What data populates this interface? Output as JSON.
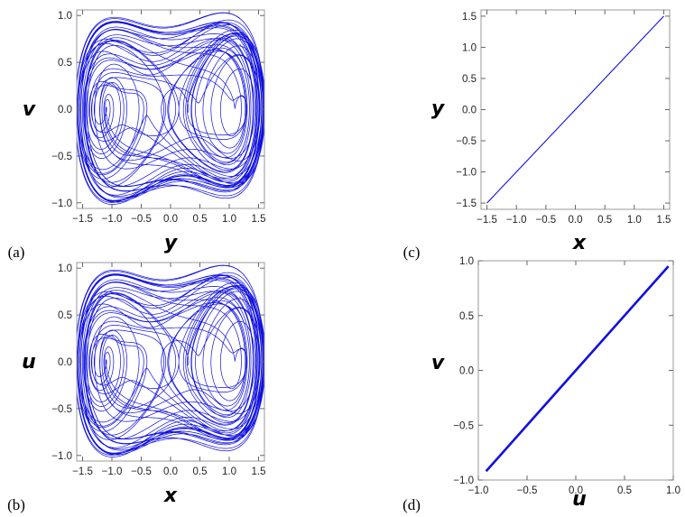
{
  "chart_data": [
    {
      "panel": "(a)",
      "type": "line",
      "curve": "chaotic-attractor",
      "xlabel": "y",
      "ylabel": "v",
      "xlim": [
        -1.6,
        1.6
      ],
      "ylim": [
        -1.06,
        1.06
      ],
      "xticks": [
        -1.5,
        -1.0,
        -0.5,
        0.0,
        0.5,
        1.0,
        1.5
      ],
      "xtick_labels": [
        "−1.5",
        "−1.0",
        "−0.5",
        "0.0",
        "0.5",
        "1.0",
        "1.5"
      ],
      "yticks": [
        -1.0,
        -0.5,
        0.0,
        0.5,
        1.0
      ],
      "ytick_labels": [
        "−1.0",
        "−0.5",
        "0.0",
        "0.5",
        "1.0"
      ],
      "line_color": "#1010e0"
    },
    {
      "panel": "(b)",
      "type": "line",
      "curve": "chaotic-attractor",
      "xlabel": "x",
      "ylabel": "u",
      "xlim": [
        -1.6,
        1.6
      ],
      "ylim": [
        -1.06,
        1.06
      ],
      "xticks": [
        -1.5,
        -1.0,
        -0.5,
        0.0,
        0.5,
        1.0,
        1.5
      ],
      "xtick_labels": [
        "−1.5",
        "−1.0",
        "−0.5",
        "0.0",
        "0.5",
        "1.0",
        "1.5"
      ],
      "yticks": [
        -1.0,
        -0.5,
        0.0,
        0.5,
        1.0
      ],
      "ytick_labels": [
        "−1.0",
        "−0.5",
        "0.0",
        "0.5",
        "1.0"
      ],
      "line_color": "#1010e0"
    },
    {
      "panel": "(c)",
      "type": "line",
      "curve": "straight-line",
      "xlabel": "x",
      "ylabel": "y",
      "xlim": [
        -1.6,
        1.6
      ],
      "ylim": [
        -1.6,
        1.6
      ],
      "xticks": [
        -1.5,
        -1.0,
        -0.5,
        0.0,
        0.5,
        1.0,
        1.5
      ],
      "xtick_labels": [
        "−1.5",
        "−1.0",
        "−0.5",
        "0.0",
        "0.5",
        "1.0",
        "1.5"
      ],
      "yticks": [
        -1.5,
        -1.0,
        -0.5,
        0.0,
        0.5,
        1.0,
        1.5
      ],
      "ytick_labels": [
        "−1.5",
        "−1.0",
        "−0.5",
        "0.0",
        "0.5",
        "1.0",
        "1.5"
      ],
      "x": [
        -1.5,
        1.5
      ],
      "y": [
        -1.5,
        1.5
      ],
      "line_color": "#1010e0"
    },
    {
      "panel": "(d)",
      "type": "line",
      "curve": "straight-line",
      "xlabel": "u",
      "ylabel": "v",
      "xlim": [
        -1.0,
        1.0
      ],
      "ylim": [
        -1.0,
        1.0
      ],
      "xticks": [
        -1.0,
        -0.5,
        0.0,
        0.5,
        1.0
      ],
      "xtick_labels": [
        "−1.0",
        "−0.5",
        "0.0",
        "0.5",
        "1.0"
      ],
      "yticks": [
        -1.0,
        -0.5,
        0.0,
        0.5,
        1.0
      ],
      "ytick_labels": [
        "−1.0",
        "−0.5",
        "0.0",
        "0.5",
        "1.0"
      ],
      "x": [
        -0.92,
        0.95
      ],
      "y": [
        -0.92,
        0.95
      ],
      "line_color": "#1010e0"
    }
  ]
}
